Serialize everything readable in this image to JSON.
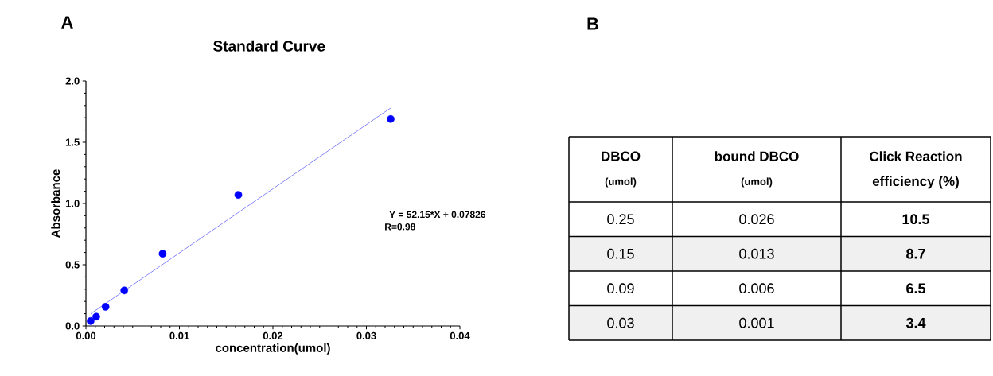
{
  "chart_data": [
    {
      "type": "scatter",
      "title": "Standard Curve",
      "xlabel": "concentration(umol)",
      "ylabel": "Absorbance",
      "annotations": [
        "A",
        "Y = 52.15*X + 0.07826",
        "R=0.98"
      ],
      "xlim": [
        0,
        0.04
      ],
      "ylim": [
        0,
        2.0
      ],
      "xticks": [
        {
          "value": 0,
          "label": "0.00"
        },
        {
          "value": 0.01,
          "label": "0.01"
        },
        {
          "value": 0.02,
          "label": "0.02"
        },
        {
          "value": 0.03,
          "label": "0.03"
        },
        {
          "value": 0.04,
          "label": "0.04"
        }
      ],
      "yticks": [
        {
          "value": 0,
          "label": "0.0"
        },
        {
          "value": 0.5,
          "label": "0.5"
        },
        {
          "value": 1.0,
          "label": "1.0"
        },
        {
          "value": 1.5,
          "label": "1.5"
        },
        {
          "value": 2.0,
          "label": "2.0"
        }
      ],
      "series": [
        {
          "type": "scatter",
          "marker": "circle",
          "color": "#0000ff",
          "x": [
            0.0005,
            0.0011,
            0.0021,
            0.0041,
            0.0082,
            0.0163,
            0.0326
          ],
          "values": [
            0.04,
            0.076,
            0.156,
            0.29,
            0.59,
            1.07,
            1.69
          ]
        },
        {
          "type": "line",
          "marker": "none",
          "color": "#6666ff",
          "x": [
            0.0005,
            0.0326
          ],
          "values": [
            0.099,
            1.78
          ]
        }
      ]
    },
    {
      "type": "other",
      "title": "B",
      "annotations": [
        "DBCO",
        "bound DBCO",
        "Click Reaction",
        "(umol)",
        "(umol)",
        "efficiency (%)",
        "0.25",
        "0.026",
        "10.5",
        "0.15",
        "0.013",
        "8.7",
        "0.09",
        "0.006",
        "6.5",
        "0.03",
        "0.001",
        "3.4"
      ]
    }
  ]
}
